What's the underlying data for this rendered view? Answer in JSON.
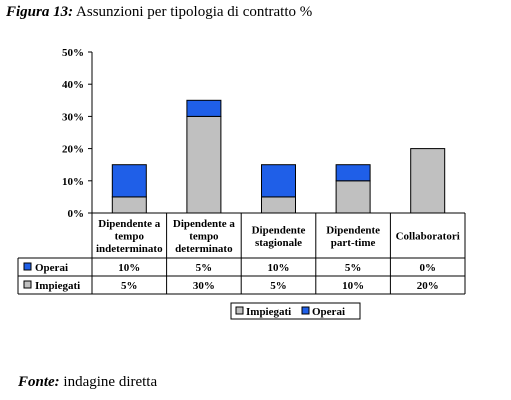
{
  "figure": {
    "label": "Figura 13:",
    "title": "Assunzioni per tipologia di contratto %"
  },
  "source": {
    "label": "Fonte:",
    "text": "indagine diretta"
  },
  "chart_data": {
    "type": "bar",
    "stacked": true,
    "title": "Assunzioni per tipologia di contratto %",
    "categories": [
      [
        "Dipendente a",
        "tempo",
        "indeterminato"
      ],
      [
        "Dipendente a",
        "tempo",
        "determinato"
      ],
      [
        "Dipendente",
        "stagionale"
      ],
      [
        "Dipendente",
        "part-time"
      ],
      [
        "Collaboratori"
      ]
    ],
    "series": [
      {
        "name": "Impiegati",
        "color": "#c0c0c0",
        "values": [
          5,
          30,
          5,
          10,
          20
        ],
        "labels": [
          "5%",
          "30%",
          "5%",
          "10%",
          "20%"
        ]
      },
      {
        "name": "Operai",
        "color": "#1f5fe8",
        "values": [
          10,
          5,
          10,
          5,
          0
        ],
        "labels": [
          "10%",
          "5%",
          "10%",
          "5%",
          "0%"
        ]
      }
    ],
    "ylim": [
      0,
      50
    ],
    "yticks": [
      "0%",
      "10%",
      "20%",
      "30%",
      "40%",
      "50%"
    ],
    "grid": false,
    "legend": "bottom",
    "legend_order": [
      "Impiegati",
      "Operai"
    ],
    "data_table": true,
    "data_table_row_order": [
      "Operai",
      "Impiegati"
    ]
  }
}
